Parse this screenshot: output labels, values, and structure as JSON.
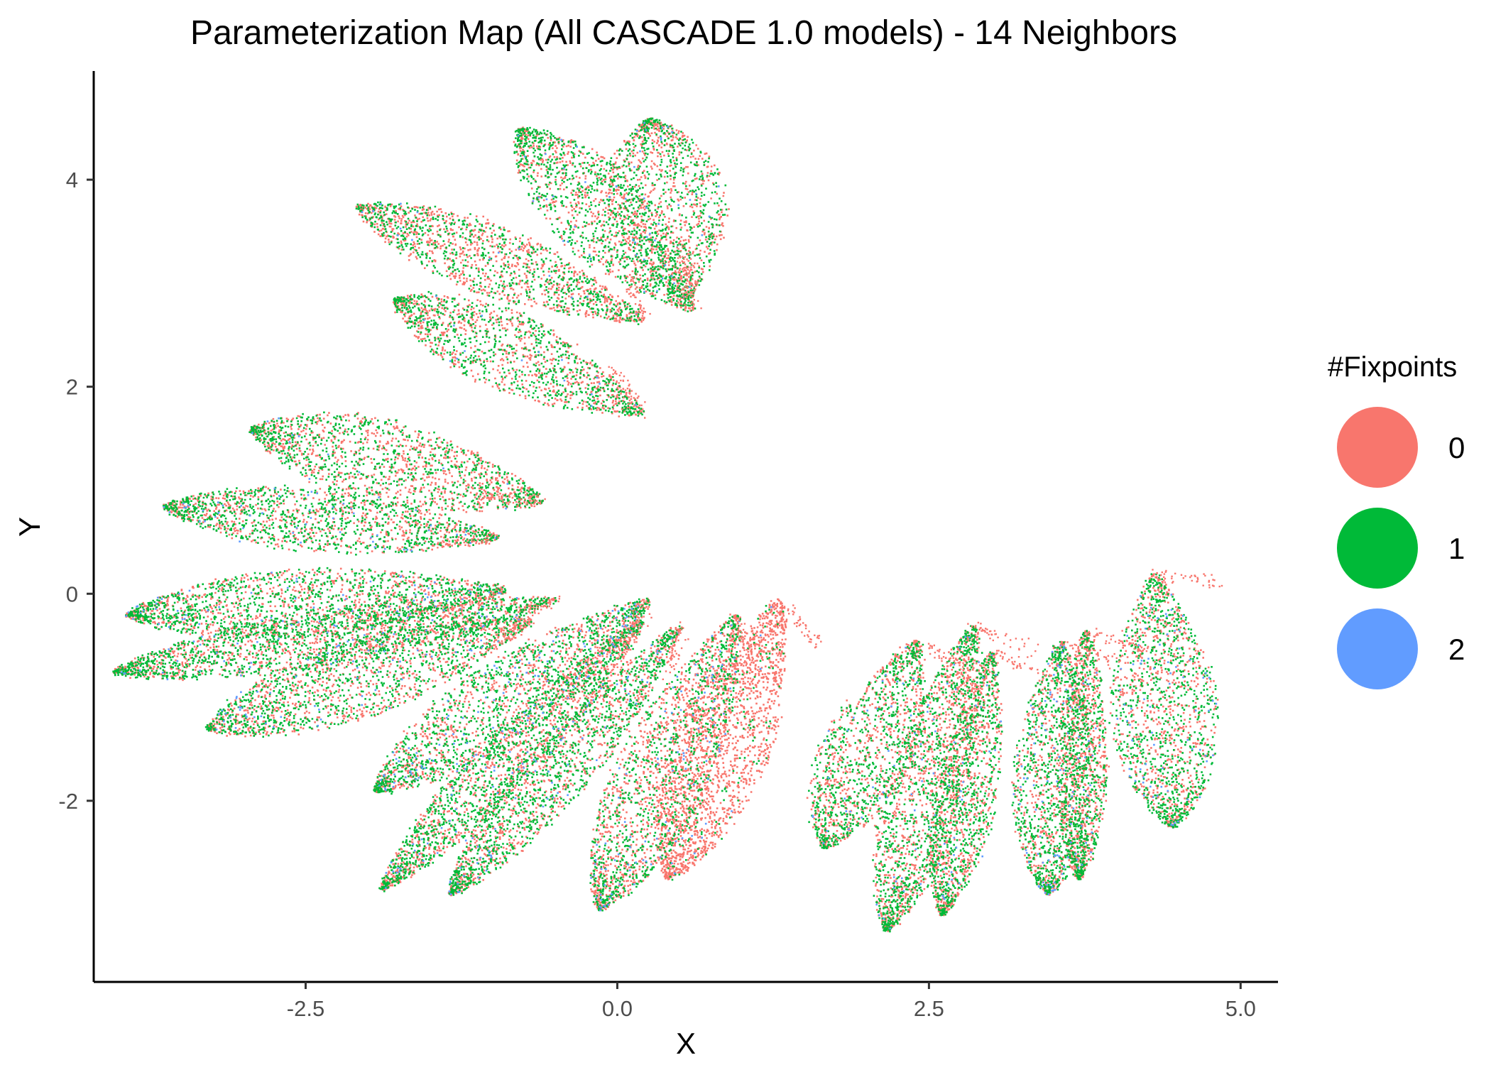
{
  "chart_data": {
    "type": "scatter",
    "title": "Parameterization Map (All CASCADE 1.0 models) - 14 Neighbors",
    "xlabel": "X",
    "ylabel": "Y",
    "xlim": [
      -4.2,
      5.3
    ],
    "ylim": [
      -3.75,
      5.05
    ],
    "x_ticks": [
      -2.5,
      0.0,
      2.5,
      5.0
    ],
    "x_tick_labels": [
      "-2.5",
      "0.0",
      "2.5",
      "5.0"
    ],
    "y_ticks": [
      -2,
      0,
      2,
      4
    ],
    "y_tick_labels": [
      "-2",
      "0",
      "2",
      "4"
    ],
    "grid": false,
    "legend": {
      "title": "#Fixpoints",
      "placement": "right",
      "entries": [
        {
          "label": "0",
          "color": "#F8766D"
        },
        {
          "label": "1",
          "color": "#00BA38"
        },
        {
          "label": "2",
          "color": "#619CFF"
        }
      ]
    },
    "series": [
      {
        "name": "0",
        "color": "#F8766D"
      },
      {
        "name": "1",
        "color": "#00BA38"
      },
      {
        "name": "2",
        "color": "#619CFF"
      }
    ],
    "clusters": [
      {
        "base": [
          0.55,
          2.85
        ],
        "tip": [
          0.25,
          4.6
        ],
        "width": 0.62,
        "mix": [
          0.5,
          0.48,
          0.02
        ]
      },
      {
        "base": [
          0.6,
          2.75
        ],
        "tip": [
          -0.8,
          4.5
        ],
        "width": 0.52,
        "mix": [
          0.45,
          0.53,
          0.02
        ]
      },
      {
        "base": [
          0.2,
          2.65
        ],
        "tip": [
          -2.1,
          3.75
        ],
        "width": 0.42,
        "mix": [
          0.55,
          0.44,
          0.01
        ]
      },
      {
        "base": [
          0.2,
          1.75
        ],
        "tip": [
          -1.8,
          2.85
        ],
        "width": 0.48,
        "mix": [
          0.5,
          0.49,
          0.01
        ]
      },
      {
        "base": [
          -0.6,
          0.9
        ],
        "tip": [
          -2.95,
          1.6
        ],
        "width": 0.52,
        "mix": [
          0.5,
          0.49,
          0.01
        ]
      },
      {
        "base": [
          -0.95,
          0.55
        ],
        "tip": [
          -3.65,
          0.85
        ],
        "width": 0.38,
        "mix": [
          0.45,
          0.52,
          0.03
        ]
      },
      {
        "base": [
          -0.9,
          0.05
        ],
        "tip": [
          -3.95,
          -0.2
        ],
        "width": 0.42,
        "mix": [
          0.42,
          0.55,
          0.03
        ]
      },
      {
        "base": [
          -0.5,
          -0.05
        ],
        "tip": [
          -4.05,
          -0.75
        ],
        "width": 0.34,
        "mix": [
          0.42,
          0.55,
          0.03
        ]
      },
      {
        "base": [
          -0.7,
          -0.25
        ],
        "tip": [
          -3.3,
          -1.3
        ],
        "width": 0.48,
        "mix": [
          0.45,
          0.52,
          0.03
        ]
      },
      {
        "base": [
          0.25,
          -0.05
        ],
        "tip": [
          -1.95,
          -1.9
        ],
        "width": 0.48,
        "mix": [
          0.42,
          0.52,
          0.06
        ]
      },
      {
        "base": [
          0.2,
          -0.25
        ],
        "tip": [
          -1.9,
          -2.85
        ],
        "width": 0.32,
        "mix": [
          0.45,
          0.52,
          0.03
        ]
      },
      {
        "base": [
          0.5,
          -0.3
        ],
        "tip": [
          -1.35,
          -2.9
        ],
        "width": 0.36,
        "mix": [
          0.45,
          0.52,
          0.03
        ]
      },
      {
        "base": [
          0.95,
          -0.2
        ],
        "tip": [
          -0.15,
          -3.05
        ],
        "width": 0.5,
        "mix": [
          0.55,
          0.4,
          0.05
        ]
      },
      {
        "base": [
          1.3,
          -0.05
        ],
        "tip": [
          0.4,
          -2.75
        ],
        "width": 0.5,
        "mix": [
          0.9,
          0.09,
          0.01
        ]
      },
      {
        "base": [
          2.4,
          -0.45
        ],
        "tip": [
          1.65,
          -2.45
        ],
        "width": 0.48,
        "mix": [
          0.45,
          0.53,
          0.02
        ]
      },
      {
        "base": [
          2.85,
          -0.3
        ],
        "tip": [
          2.15,
          -3.25
        ],
        "width": 0.42,
        "mix": [
          0.5,
          0.48,
          0.02
        ]
      },
      {
        "base": [
          3.0,
          -0.55
        ],
        "tip": [
          2.6,
          -3.1
        ],
        "width": 0.32,
        "mix": [
          0.5,
          0.48,
          0.02
        ]
      },
      {
        "base": [
          3.55,
          -0.45
        ],
        "tip": [
          3.45,
          -2.9
        ],
        "width": 0.42,
        "mix": [
          0.4,
          0.55,
          0.05
        ]
      },
      {
        "base": [
          3.75,
          -0.35
        ],
        "tip": [
          3.7,
          -2.75
        ],
        "width": 0.26,
        "mix": [
          0.55,
          0.43,
          0.02
        ]
      },
      {
        "base": [
          4.3,
          0.2
        ],
        "tip": [
          4.45,
          -2.25
        ],
        "width": 0.55,
        "mix": [
          0.45,
          0.5,
          0.05
        ]
      }
    ]
  }
}
